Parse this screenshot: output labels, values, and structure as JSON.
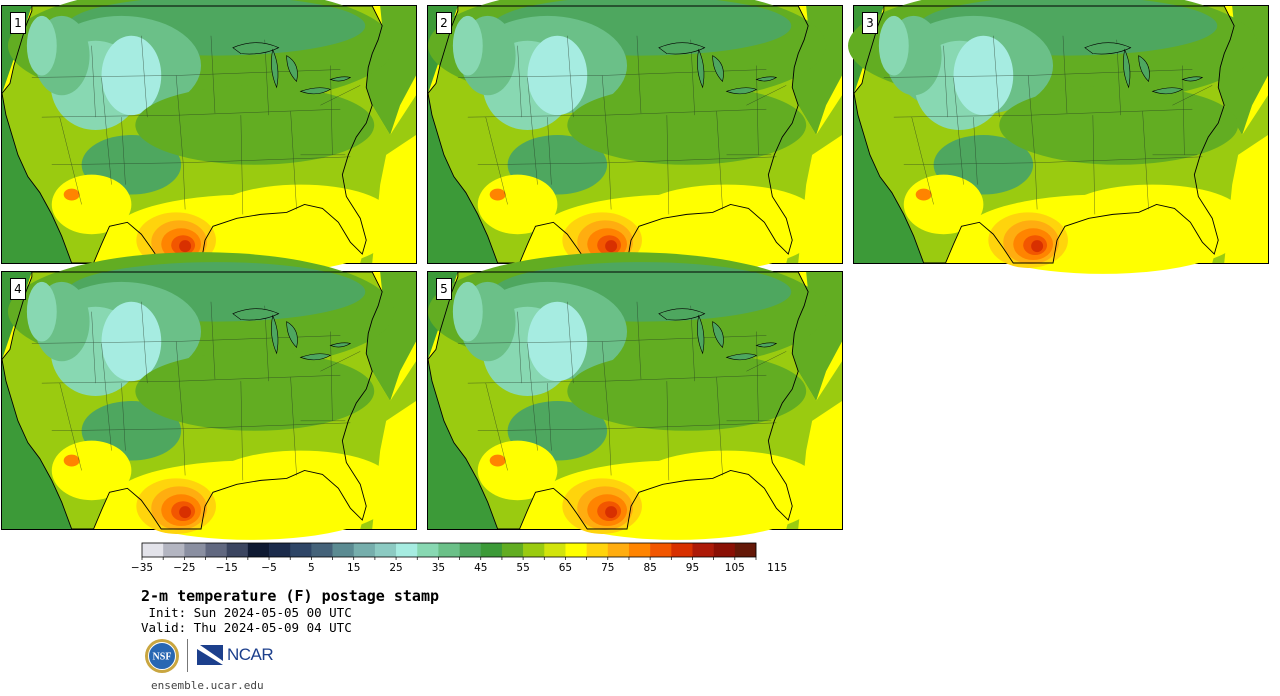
{
  "panels": [
    {
      "label": "1"
    },
    {
      "label": "2"
    },
    {
      "label": "3"
    },
    {
      "label": "4"
    },
    {
      "label": "5"
    }
  ],
  "colorbar": {
    "colors": [
      "#e3e3ea",
      "#b3b5c1",
      "#8a8fa1",
      "#616880",
      "#3b4560",
      "#0f1a32",
      "#1b2b4b",
      "#2e4566",
      "#446279",
      "#5b8b92",
      "#76aeac",
      "#8ccac2",
      "#a6ece1",
      "#88d8b2",
      "#6bc088",
      "#4ea75f",
      "#3c9a38",
      "#62ad22",
      "#9acb10",
      "#d2e40c",
      "#ffff00",
      "#ffd40c",
      "#ffad10",
      "#ff8400",
      "#f25600",
      "#d83000",
      "#ad1a08",
      "#8a1005",
      "#641808"
    ],
    "tick_labels": [
      "−35",
      "−25",
      "−15",
      "−5",
      "5",
      "15",
      "25",
      "35",
      "45",
      "55",
      "65",
      "75",
      "85",
      "95",
      "105",
      "115"
    ]
  },
  "title": "2-m temperature (F) postage stamp",
  "init": " Init: Sun 2024-05-05 00 UTC",
  "valid": "Valid: Thu 2024-05-09 04 UTC",
  "logos": {
    "nsf": "NSF",
    "ncar": "NCAR"
  },
  "url": "ensemble.ucar.edu"
}
